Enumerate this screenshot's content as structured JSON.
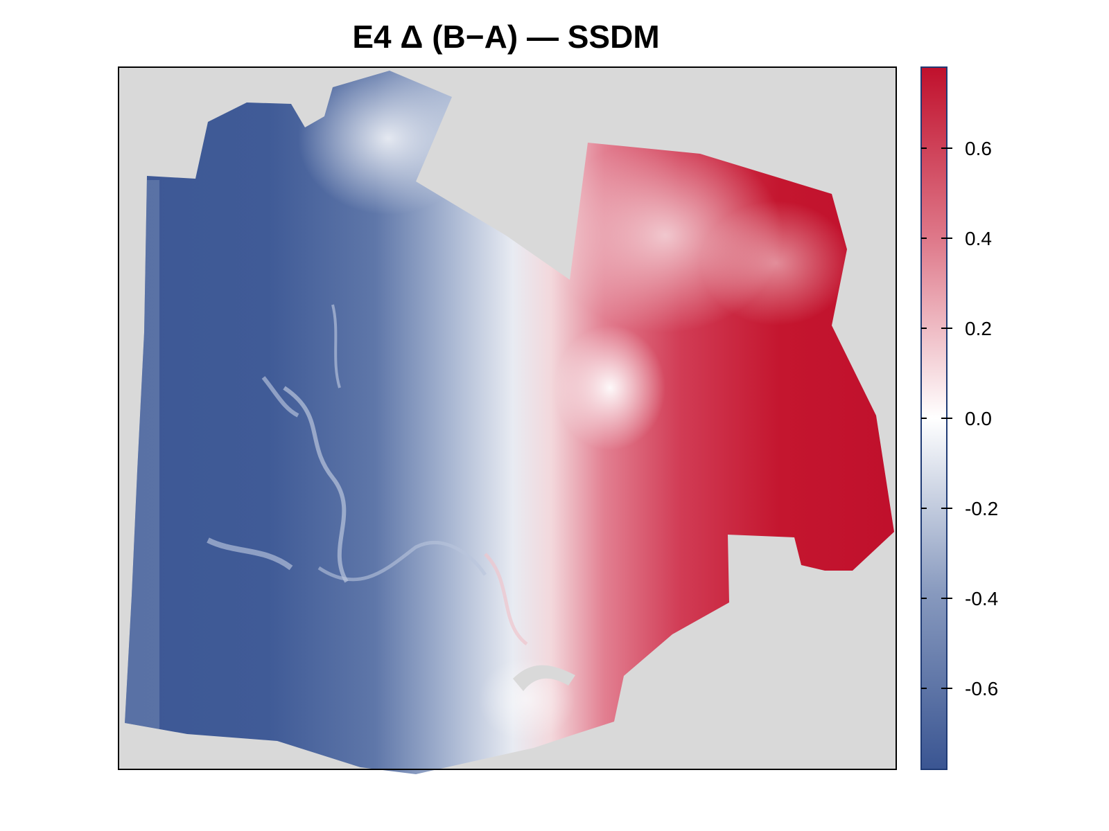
{
  "title": "E4 Δ (B−A) — SSDM",
  "colors": {
    "background_na": "#d9d9d9",
    "negative_max": "#3a5592",
    "mid": "#ffffff",
    "positive_max": "#c0102c"
  },
  "legend": {
    "position": "right",
    "range": [
      -0.78,
      0.78
    ],
    "ticks": [
      {
        "value": 0.6,
        "label": "0.6"
      },
      {
        "value": 0.4,
        "label": "0.4"
      },
      {
        "value": 0.2,
        "label": "0.2"
      },
      {
        "value": 0.0,
        "label": "0.0"
      },
      {
        "value": -0.2,
        "label": "-0.2"
      },
      {
        "value": -0.4,
        "label": "-0.4"
      },
      {
        "value": -0.6,
        "label": "-0.6"
      }
    ]
  }
}
